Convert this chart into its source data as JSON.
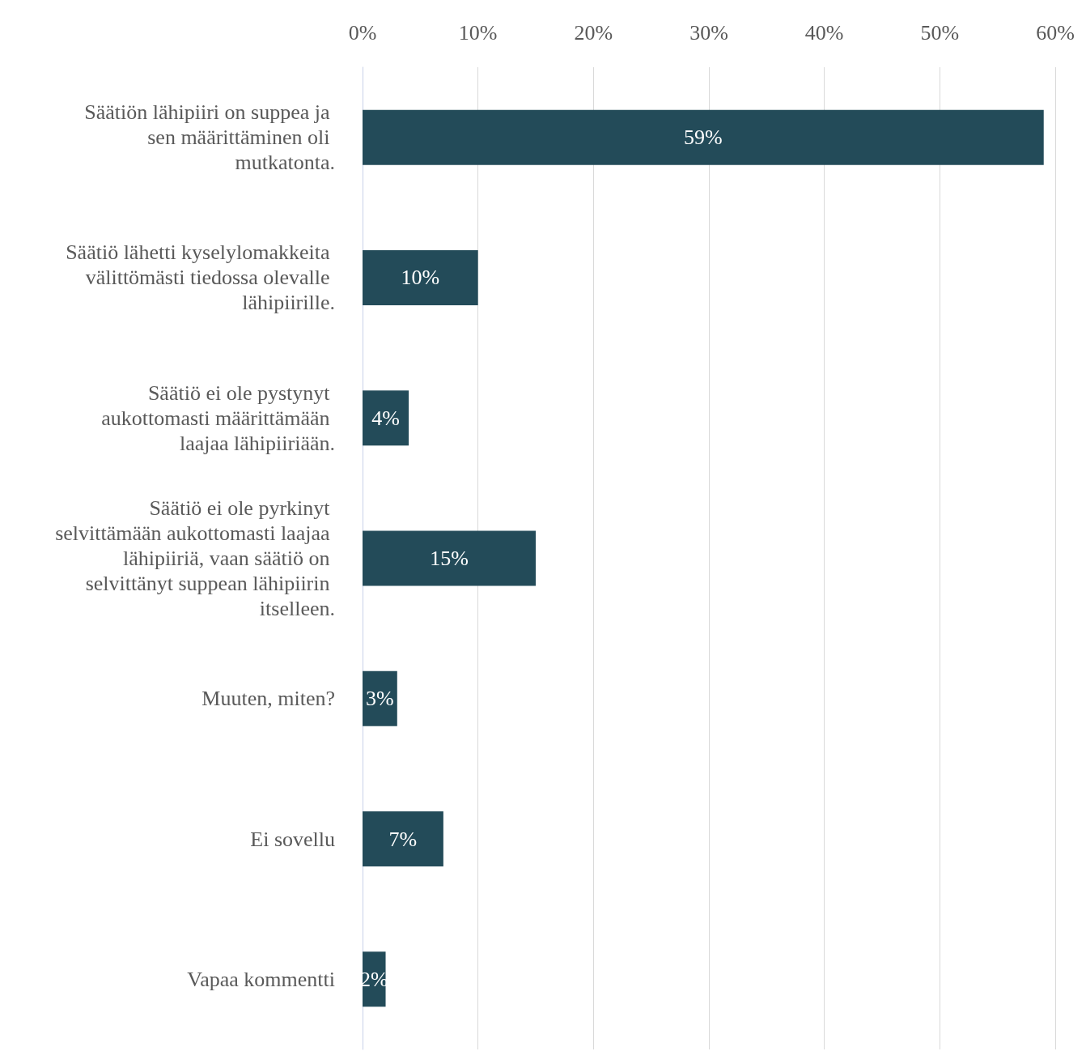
{
  "chart_data": {
    "type": "bar",
    "orientation": "horizontal",
    "categories": [
      "Säätiön lähipiiri on suppea ja sen määrittäminen oli mutkatonta.",
      "Säätiö lähetti kyselylomakkeita välittömästi tiedossa olevalle lähipiirille.",
      "Säätiö ei ole pystynyt aukottomasti määrittämään laajaa lähipiiriään.",
      "Säätiö ei ole pyrkinyt selvittämään aukottomasti laajaa lähipiiriä, vaan säätiö on selvittänyt suppean lähipiirin itselleen.",
      "Muuten, miten?",
      "Ei sovellu",
      "Vapaa kommentti"
    ],
    "values": [
      59,
      10,
      4,
      15,
      3,
      7,
      2
    ],
    "value_labels": [
      "59%",
      "10%",
      "4%",
      "15%",
      "3%",
      "7%",
      "2%"
    ],
    "color": "#234b59",
    "xlim": [
      0,
      60
    ],
    "xticks": [
      {
        "value": 0,
        "label": "0%"
      },
      {
        "value": 10,
        "label": "10%"
      },
      {
        "value": 20,
        "label": "20%"
      },
      {
        "value": 30,
        "label": "30%"
      },
      {
        "value": 40,
        "label": "40%"
      },
      {
        "value": 50,
        "label": "50%"
      },
      {
        "value": 60,
        "label": "60%"
      }
    ],
    "grid": "x"
  }
}
